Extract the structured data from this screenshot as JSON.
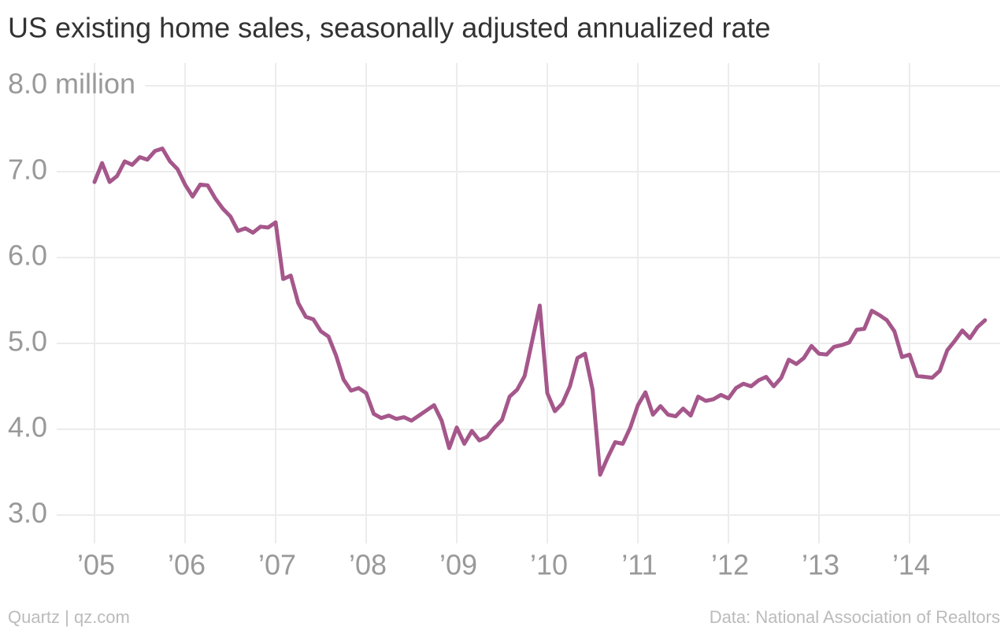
{
  "chart_data": {
    "type": "line",
    "title": "US existing home sales, seasonally adjusted annualized rate",
    "source_left": "Quartz | qz.com",
    "source_right": "Data: National Association of Realtors",
    "categories": [
      "’05",
      null,
      null,
      null,
      null,
      null,
      null,
      null,
      null,
      null,
      null,
      null,
      "’06",
      null,
      null,
      null,
      null,
      null,
      null,
      null,
      null,
      null,
      null,
      null,
      "’07",
      null,
      null,
      null,
      null,
      null,
      null,
      null,
      null,
      null,
      null,
      null,
      "’08",
      null,
      null,
      null,
      null,
      null,
      null,
      null,
      null,
      null,
      null,
      null,
      "’09",
      null,
      null,
      null,
      null,
      null,
      null,
      null,
      null,
      null,
      null,
      null,
      "’10",
      null,
      null,
      null,
      null,
      null,
      null,
      null,
      null,
      null,
      null,
      null,
      "’11",
      null,
      null,
      null,
      null,
      null,
      null,
      null,
      null,
      null,
      null,
      null,
      "’12",
      null,
      null,
      null,
      null,
      null,
      null,
      null,
      null,
      null,
      null,
      null,
      "’13",
      null,
      null,
      null,
      null,
      null,
      null,
      null,
      null,
      null,
      null,
      null,
      "’14",
      null,
      null,
      null,
      null,
      null,
      null,
      null,
      null,
      null,
      null
    ],
    "values": [
      6.88,
      7.1,
      6.88,
      6.95,
      7.12,
      7.08,
      7.17,
      7.14,
      7.24,
      7.27,
      7.12,
      7.03,
      6.85,
      6.71,
      6.85,
      6.84,
      6.69,
      6.57,
      6.48,
      6.31,
      6.34,
      6.29,
      6.36,
      6.35,
      6.41,
      5.75,
      5.79,
      5.47,
      5.31,
      5.28,
      5.14,
      5.08,
      4.86,
      4.58,
      4.45,
      4.48,
      4.42,
      4.18,
      4.13,
      4.16,
      4.12,
      4.14,
      4.1,
      4.16,
      4.22,
      4.28,
      4.1,
      3.78,
      4.02,
      3.83,
      3.98,
      3.87,
      3.91,
      4.02,
      4.11,
      4.38,
      4.46,
      4.62,
      5.03,
      5.44,
      4.42,
      4.21,
      4.3,
      4.5,
      4.83,
      4.88,
      4.46,
      3.47,
      3.67,
      3.85,
      3.83,
      4.02,
      4.28,
      4.43,
      4.17,
      4.27,
      4.17,
      4.15,
      4.24,
      4.16,
      4.38,
      4.33,
      4.35,
      4.4,
      4.36,
      4.48,
      4.53,
      4.5,
      4.57,
      4.61,
      4.5,
      4.6,
      4.81,
      4.76,
      4.83,
      4.97,
      4.88,
      4.87,
      4.96,
      4.98,
      5.01,
      5.16,
      5.17,
      5.38,
      5.33,
      5.27,
      5.14,
      4.84,
      4.87,
      4.62,
      4.61,
      4.6,
      4.68,
      4.92,
      5.03,
      5.15,
      5.06,
      5.19,
      5.27
    ],
    "color": "#a5578b",
    "ylim": [
      2.7,
      8.1
    ],
    "yticks": [
      {
        "value": 3,
        "label": "3.0"
      },
      {
        "value": 4,
        "label": "4.0"
      },
      {
        "value": 5,
        "label": "5.0"
      },
      {
        "value": 6,
        "label": "6.0"
      },
      {
        "value": 7,
        "label": "7.0"
      },
      {
        "value": 8,
        "label": "8.0 million"
      }
    ],
    "grid": true
  }
}
